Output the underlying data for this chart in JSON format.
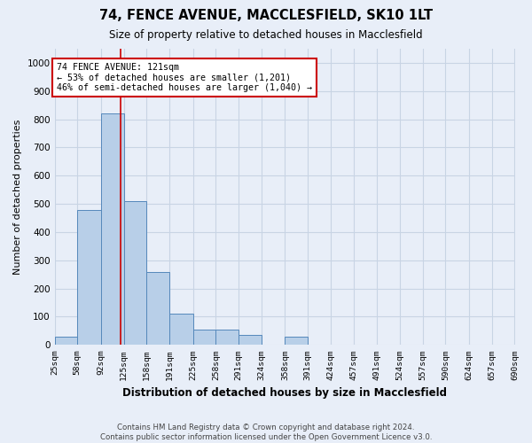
{
  "title": "74, FENCE AVENUE, MACCLESFIELD, SK10 1LT",
  "subtitle": "Size of property relative to detached houses in Macclesfield",
  "xlabel": "Distribution of detached houses by size in Macclesfield",
  "ylabel": "Number of detached properties",
  "footer_line1": "Contains HM Land Registry data © Crown copyright and database right 2024.",
  "footer_line2": "Contains public sector information licensed under the Open Government Licence v3.0.",
  "bar_color": "#b8cfe8",
  "bar_edge_color": "#5588bb",
  "grid_color": "#c8d4e4",
  "background_color": "#e8eef8",
  "property_line_color": "#cc0000",
  "property_sqm": 121,
  "annotation_text": "74 FENCE AVENUE: 121sqm\n← 53% of detached houses are smaller (1,201)\n46% of semi-detached houses are larger (1,040) →",
  "annotation_box_color": "#ffffff",
  "annotation_box_edge": "#cc0000",
  "bin_edges": [
    25,
    58,
    92,
    125,
    158,
    191,
    225,
    258,
    291,
    324,
    358,
    391,
    424,
    457,
    491,
    524,
    557,
    590,
    624,
    657,
    690
  ],
  "bar_heights": [
    30,
    478,
    820,
    510,
    258,
    110,
    55,
    55,
    35,
    0,
    30,
    0,
    0,
    0,
    0,
    0,
    0,
    0,
    0,
    0
  ],
  "tick_labels": [
    "25sqm",
    "58sqm",
    "92sqm",
    "125sqm",
    "158sqm",
    "191sqm",
    "225sqm",
    "258sqm",
    "291sqm",
    "324sqm",
    "358sqm",
    "391sqm",
    "424sqm",
    "457sqm",
    "491sqm",
    "524sqm",
    "557sqm",
    "590sqm",
    "624sqm",
    "657sqm",
    "690sqm"
  ],
  "ylim": [
    0,
    1050
  ],
  "yticks": [
    0,
    100,
    200,
    300,
    400,
    500,
    600,
    700,
    800,
    900,
    1000
  ]
}
